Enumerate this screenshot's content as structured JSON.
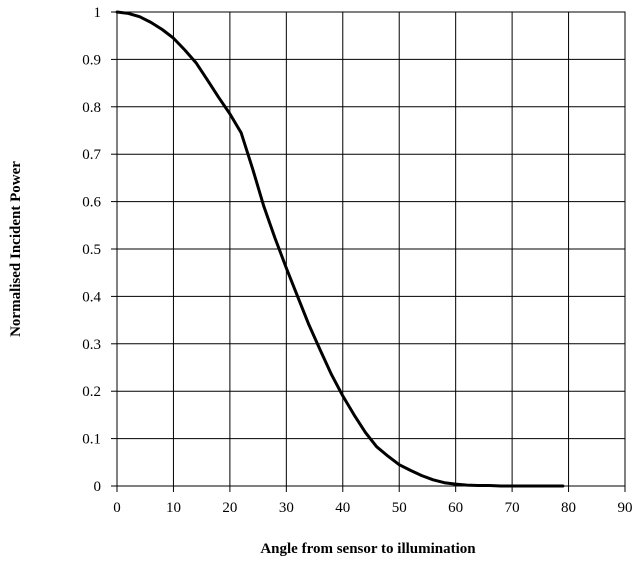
{
  "chart_data": {
    "type": "line",
    "title": "",
    "xlabel": "Angle from sensor to illumination",
    "ylabel": "Normalised Incident Power",
    "xlim": [
      0,
      90
    ],
    "ylim": [
      0,
      1
    ],
    "x_ticks": [
      0,
      10,
      20,
      30,
      40,
      50,
      60,
      70,
      80,
      90
    ],
    "y_ticks": [
      0,
      0.1,
      0.2,
      0.3,
      0.4,
      0.5,
      0.6,
      0.7,
      0.8,
      0.9,
      1
    ],
    "x_tick_labels": [
      "0",
      "10",
      "20",
      "30",
      "40",
      "50",
      "60",
      "70",
      "80",
      "90"
    ],
    "y_tick_labels": [
      "0",
      "0.1",
      "0.2",
      "0.3",
      "0.4",
      "0.5",
      "0.6",
      "0.7",
      "0.8",
      "0.9",
      "1"
    ],
    "grid": true,
    "series": [
      {
        "color": "#000000",
        "x": [
          0,
          2,
          4,
          6,
          8,
          10,
          12,
          14,
          16,
          18,
          20,
          22,
          24,
          26,
          28,
          30,
          32,
          34,
          36,
          38,
          40,
          42,
          44,
          46,
          48,
          50,
          52,
          54,
          56,
          58,
          60,
          62,
          64,
          66,
          68,
          70,
          72,
          74,
          76,
          78,
          79
        ],
        "y": [
          1.0,
          0.997,
          0.99,
          0.978,
          0.963,
          0.945,
          0.92,
          0.893,
          0.857,
          0.82,
          0.785,
          0.745,
          0.67,
          0.59,
          0.523,
          0.46,
          0.4,
          0.34,
          0.287,
          0.235,
          0.19,
          0.15,
          0.113,
          0.083,
          0.063,
          0.045,
          0.033,
          0.022,
          0.013,
          0.007,
          0.004,
          0.002,
          0.001,
          0.001,
          0.0,
          0.0,
          0.0,
          0.0,
          0.0,
          0.0,
          0.0
        ]
      }
    ]
  }
}
